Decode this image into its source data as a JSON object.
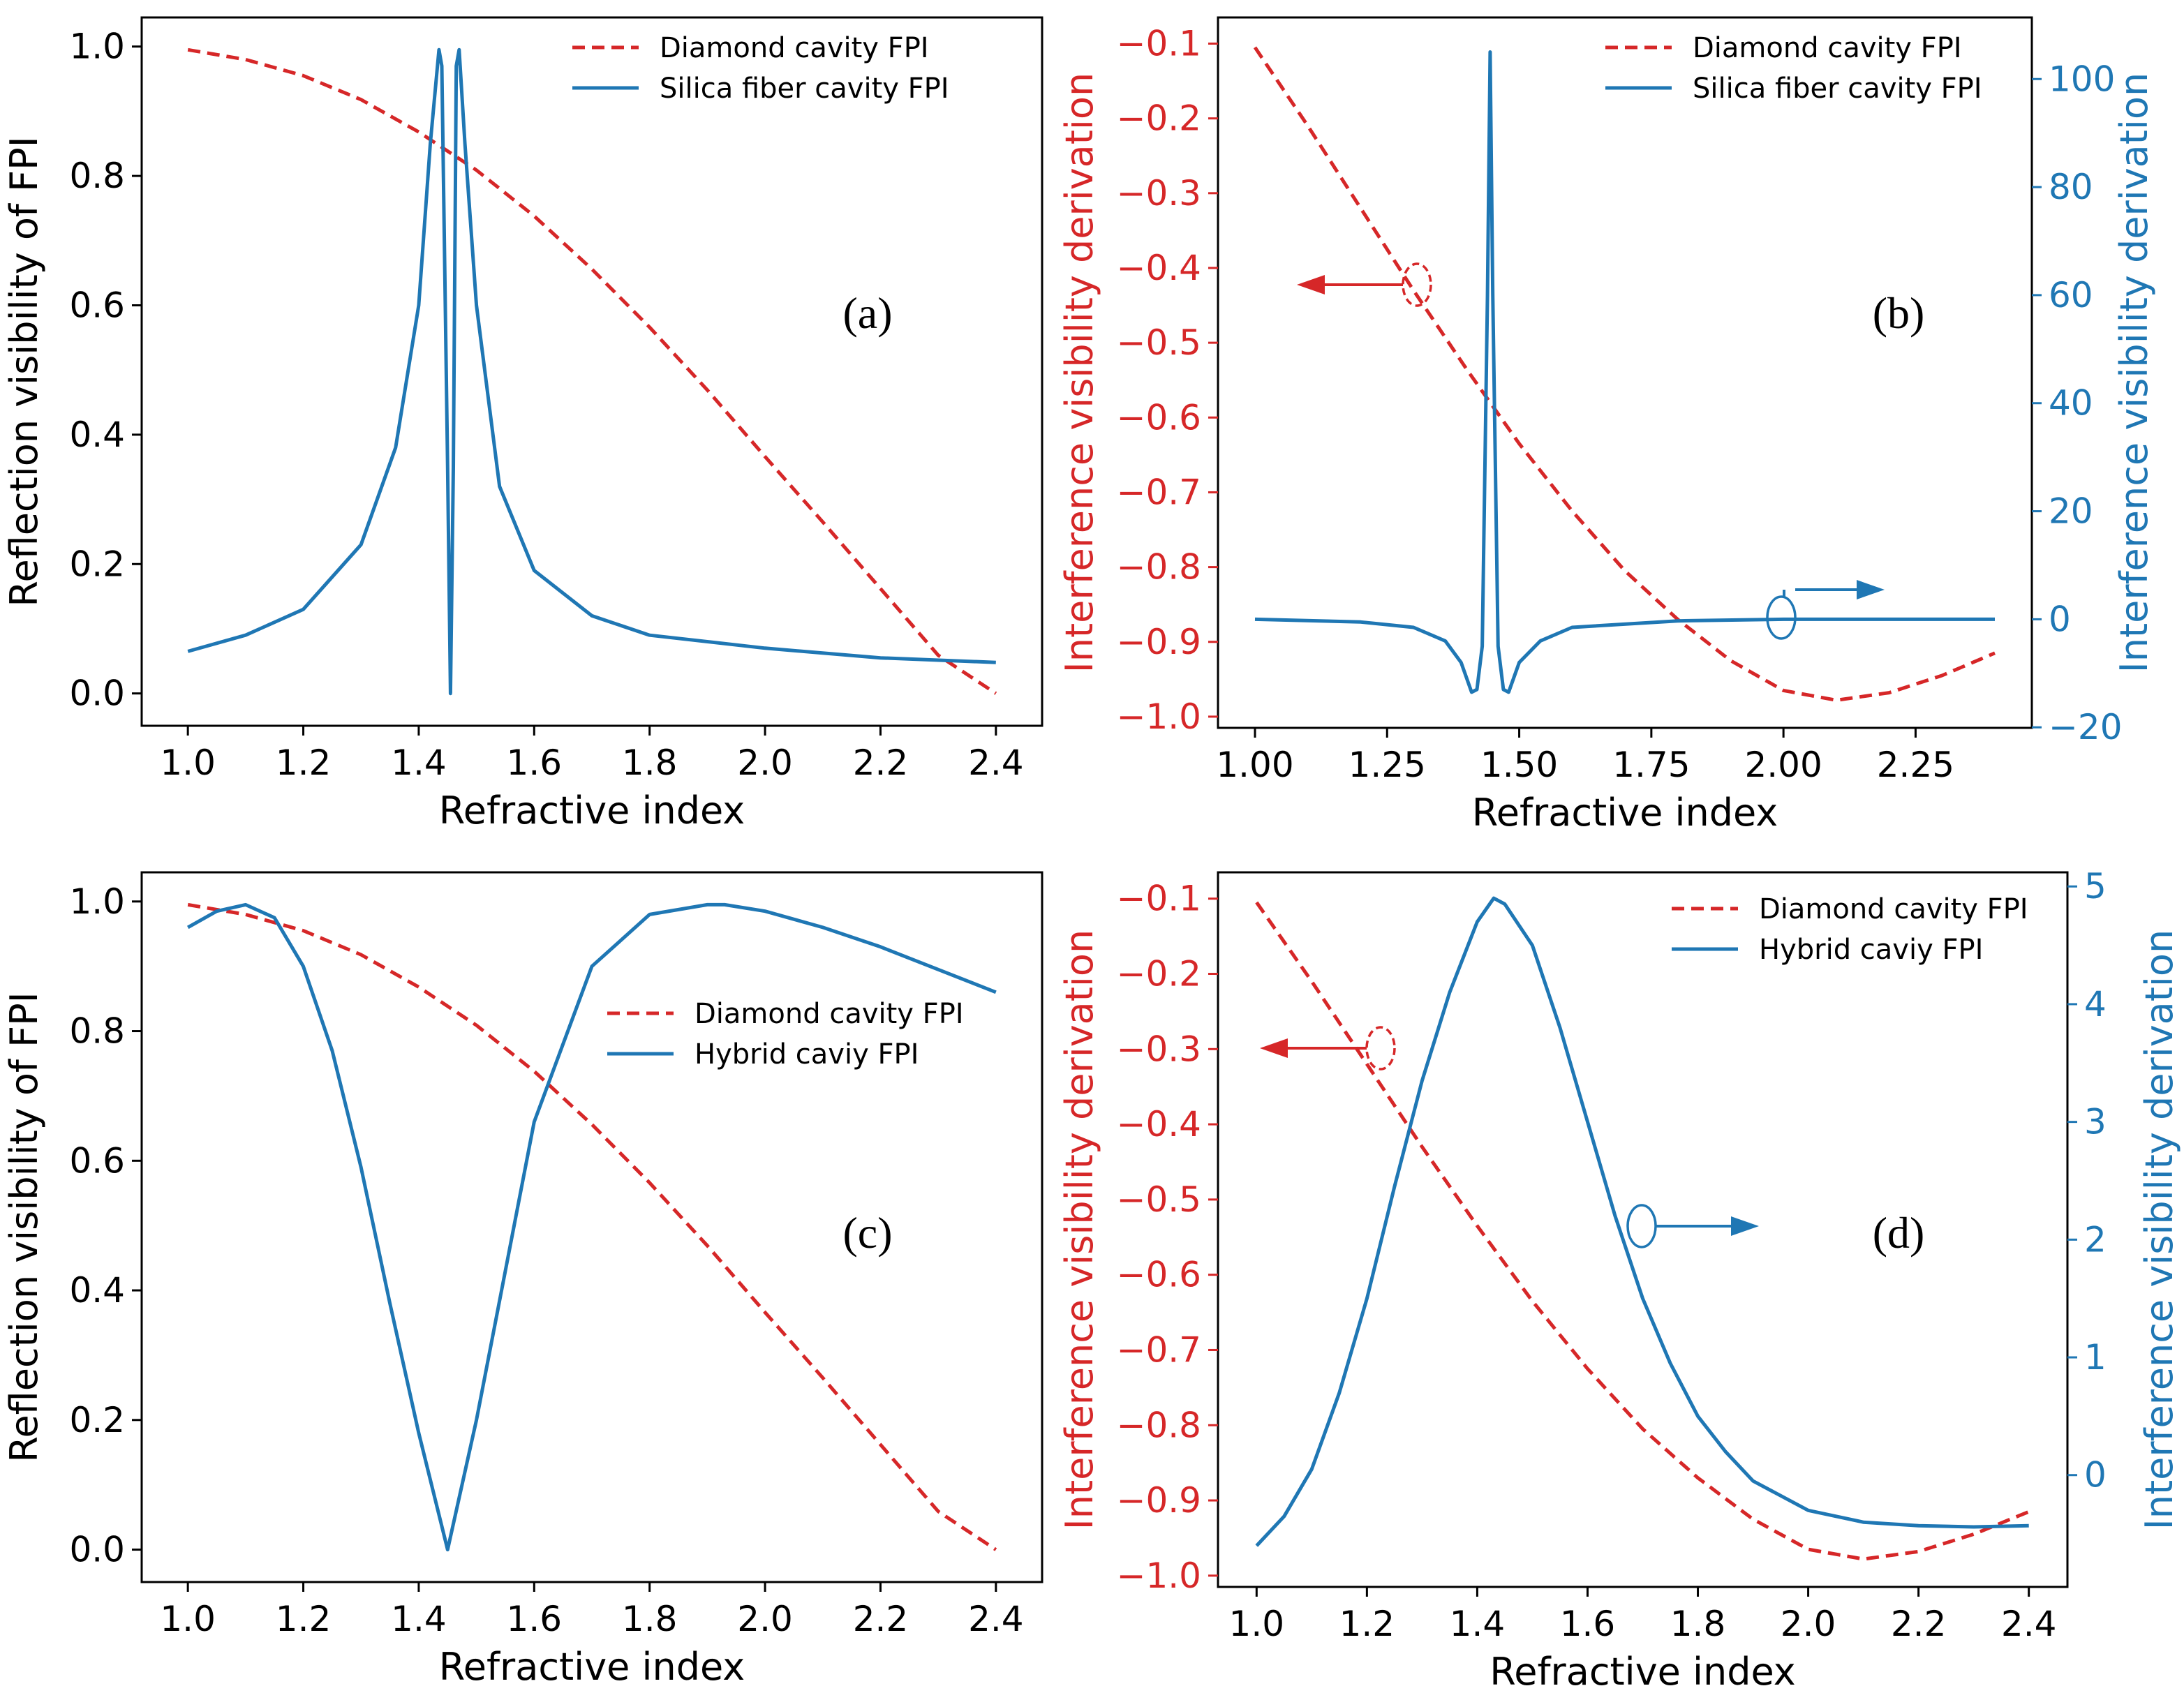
{
  "colors": {
    "red": "#d62728",
    "blue": "#1f77b4",
    "axis": "#000000"
  },
  "chart_data": [
    {
      "id": "a",
      "type": "line",
      "panel_label": "(a)",
      "xlabel": "Refractive index",
      "ylabel": "Reflection visibility of  FPI",
      "xlim": [
        0.92,
        2.48
      ],
      "ylim": [
        -0.05,
        1.045
      ],
      "xticks": [
        1.0,
        1.2,
        1.4,
        1.6,
        1.8,
        2.0,
        2.2,
        2.4
      ],
      "xtick_labels": [
        "1.0",
        "1.2",
        "1.4",
        "1.6",
        "1.8",
        "2.0",
        "2.2",
        "2.4"
      ],
      "yticks": [
        0.0,
        0.2,
        0.4,
        0.6,
        0.8,
        1.0
      ],
      "ytick_labels": [
        "0.0",
        "0.2",
        "0.4",
        "0.6",
        "0.8",
        "1.0"
      ],
      "legend": [
        "Diamond cavity FPI",
        "Silica fiber cavity FPI"
      ],
      "legend_loc": "upper-right",
      "series": [
        {
          "name": "Diamond cavity FPI",
          "style": "dashed",
          "color": "red",
          "x": [
            1.0,
            1.1,
            1.2,
            1.3,
            1.4,
            1.5,
            1.6,
            1.7,
            1.8,
            1.9,
            2.0,
            2.1,
            2.2,
            2.3,
            2.4
          ],
          "y": [
            0.995,
            0.98,
            0.955,
            0.918,
            0.868,
            0.809,
            0.738,
            0.656,
            0.566,
            0.469,
            0.366,
            0.265,
            0.162,
            0.059,
            0.0
          ]
        },
        {
          "name": "Silica fiber cavity FPI",
          "style": "solid",
          "color": "blue",
          "x": [
            1.0,
            1.1,
            1.2,
            1.3,
            1.36,
            1.4,
            1.42,
            1.435,
            1.44,
            1.45,
            1.455,
            1.46,
            1.465,
            1.47,
            1.48,
            1.5,
            1.54,
            1.6,
            1.7,
            1.8,
            2.0,
            2.2,
            2.4
          ],
          "y": [
            0.065,
            0.09,
            0.13,
            0.23,
            0.38,
            0.6,
            0.85,
            0.995,
            0.97,
            0.35,
            0.0,
            0.35,
            0.97,
            0.995,
            0.85,
            0.6,
            0.32,
            0.19,
            0.12,
            0.09,
            0.07,
            0.055,
            0.048
          ]
        }
      ]
    },
    {
      "id": "b",
      "type": "line",
      "panel_label": "(b)",
      "xlabel": "Refractive index",
      "ylabel": "Interference visibility derivation",
      "ylabel_right": "Interference visibility derivation",
      "xlim": [
        0.93,
        2.47
      ],
      "ylim": [
        -1.015,
        -0.065
      ],
      "ylim_right": [
        -20.1,
        111.4
      ],
      "xticks": [
        1.0,
        1.25,
        1.5,
        1.75,
        2.0,
        2.25
      ],
      "xtick_labels": [
        "1.00",
        "1.25",
        "1.50",
        "1.75",
        "2.00",
        "2.25"
      ],
      "yticks": [
        -1.0,
        -0.9,
        -0.8,
        -0.7,
        -0.6,
        -0.5,
        -0.4,
        -0.3,
        -0.2,
        -0.1
      ],
      "ytick_labels": [
        "−1.0",
        "−0.9",
        "−0.8",
        "−0.7",
        "−0.6",
        "−0.5",
        "−0.4",
        "−0.3",
        "−0.2",
        "−0.1"
      ],
      "yticks_right": [
        -20,
        0,
        20,
        40,
        60,
        80,
        100
      ],
      "ytick_labels_right": [
        "−20",
        "0",
        "20",
        "40",
        "60",
        "80",
        "100"
      ],
      "legend": [
        "Diamond cavity FPI",
        "Silica fiber cavity FPI"
      ],
      "legend_loc": "upper-right",
      "series": [
        {
          "name": "Diamond cavity FPI",
          "style": "dashed",
          "color": "red",
          "axis": "left",
          "x": [
            1.0,
            1.1,
            1.2,
            1.3,
            1.4,
            1.5,
            1.6,
            1.7,
            1.8,
            1.9,
            2.0,
            2.1,
            2.2,
            2.3,
            2.4
          ],
          "y": [
            -0.105,
            -0.21,
            -0.32,
            -0.43,
            -0.535,
            -0.635,
            -0.725,
            -0.805,
            -0.87,
            -0.925,
            -0.965,
            -0.978,
            -0.968,
            -0.945,
            -0.915
          ]
        },
        {
          "name": "Silica fiber cavity FPI",
          "style": "solid",
          "color": "blue",
          "axis": "right",
          "x": [
            1.0,
            1.2,
            1.3,
            1.36,
            1.39,
            1.41,
            1.42,
            1.43,
            1.44,
            1.445,
            1.45,
            1.46,
            1.47,
            1.48,
            1.5,
            1.54,
            1.6,
            1.8,
            2.0,
            2.4
          ],
          "y": [
            0.0,
            -0.5,
            -1.5,
            -4.0,
            -8.0,
            -13.5,
            -13.0,
            -5.0,
            60.0,
            105.0,
            60.0,
            -5.0,
            -13.0,
            -13.5,
            -8.0,
            -4.0,
            -1.5,
            -0.3,
            0.0,
            0.0
          ]
        }
      ],
      "annotations": [
        "red ellipse with arrow pointing to left axis",
        "blue ellipse with arrow pointing to right axis"
      ]
    },
    {
      "id": "c",
      "type": "line",
      "panel_label": "(c)",
      "xlabel": "Refractive index",
      "ylabel": "Reflection visibility of FPI",
      "xlim": [
        0.92,
        2.48
      ],
      "ylim": [
        -0.05,
        1.045
      ],
      "xticks": [
        1.0,
        1.2,
        1.4,
        1.6,
        1.8,
        2.0,
        2.2,
        2.4
      ],
      "xtick_labels": [
        "1.0",
        "1.2",
        "1.4",
        "1.6",
        "1.8",
        "2.0",
        "2.2",
        "2.4"
      ],
      "yticks": [
        0.0,
        0.2,
        0.4,
        0.6,
        0.8,
        1.0
      ],
      "ytick_labels": [
        "0.0",
        "0.2",
        "0.4",
        "0.6",
        "0.8",
        "1.0"
      ],
      "legend": [
        "Diamond cavity FPI",
        "Hybrid caviy FPI"
      ],
      "legend_loc": "center-right",
      "series": [
        {
          "name": "Diamond cavity FPI",
          "style": "dashed",
          "color": "red",
          "x": [
            1.0,
            1.1,
            1.2,
            1.3,
            1.4,
            1.5,
            1.6,
            1.7,
            1.8,
            1.9,
            2.0,
            2.1,
            2.2,
            2.3,
            2.4
          ],
          "y": [
            0.995,
            0.98,
            0.955,
            0.918,
            0.868,
            0.809,
            0.738,
            0.656,
            0.566,
            0.469,
            0.366,
            0.265,
            0.162,
            0.059,
            0.0
          ]
        },
        {
          "name": "Hybrid caviy FPI",
          "style": "solid",
          "color": "blue",
          "x": [
            1.0,
            1.05,
            1.1,
            1.15,
            1.2,
            1.25,
            1.3,
            1.35,
            1.4,
            1.45,
            1.5,
            1.55,
            1.6,
            1.7,
            1.8,
            1.9,
            1.93,
            2.0,
            2.1,
            2.2,
            2.3,
            2.4
          ],
          "y": [
            0.96,
            0.985,
            0.995,
            0.975,
            0.9,
            0.77,
            0.59,
            0.38,
            0.18,
            0.0,
            0.2,
            0.43,
            0.66,
            0.9,
            0.98,
            0.995,
            0.995,
            0.985,
            0.96,
            0.93,
            0.895,
            0.86
          ]
        }
      ]
    },
    {
      "id": "d",
      "type": "line",
      "panel_label": "(d)",
      "xlabel": "Refractive index",
      "ylabel": "Interference visibility derivation",
      "ylabel_right": "Interference visibility derivation",
      "xlim": [
        0.93,
        2.47
      ],
      "ylim": [
        -1.015,
        -0.065
      ],
      "ylim_right": [
        -0.95,
        5.12
      ],
      "xticks": [
        1.0,
        1.2,
        1.4,
        1.6,
        1.8,
        2.0,
        2.2,
        2.4
      ],
      "xtick_labels": [
        "1.0",
        "1.2",
        "1.4",
        "1.6",
        "1.8",
        "2.0",
        "2.2",
        "2.4"
      ],
      "yticks": [
        -1.0,
        -0.9,
        -0.8,
        -0.7,
        -0.6,
        -0.5,
        -0.4,
        -0.3,
        -0.2,
        -0.1
      ],
      "ytick_labels": [
        "−1.0",
        "−0.9",
        "−0.8",
        "−0.7",
        "−0.6",
        "−0.5",
        "−0.4",
        "−0.3",
        "−0.2",
        "−0.1"
      ],
      "yticks_right": [
        0,
        1,
        2,
        3,
        4,
        5
      ],
      "ytick_labels_right": [
        "0",
        "1",
        "2",
        "3",
        "4",
        "5"
      ],
      "legend": [
        "Diamond cavity FPI",
        "Hybrid caviy FPI"
      ],
      "legend_loc": "upper-right",
      "series": [
        {
          "name": "Diamond cavity FPI",
          "style": "dashed",
          "color": "red",
          "axis": "left",
          "x": [
            1.0,
            1.1,
            1.2,
            1.3,
            1.4,
            1.5,
            1.6,
            1.7,
            1.8,
            1.9,
            2.0,
            2.1,
            2.2,
            2.3,
            2.4
          ],
          "y": [
            -0.105,
            -0.21,
            -0.32,
            -0.43,
            -0.535,
            -0.635,
            -0.725,
            -0.805,
            -0.87,
            -0.925,
            -0.965,
            -0.978,
            -0.968,
            -0.945,
            -0.915
          ]
        },
        {
          "name": "Hybrid caviy FPI",
          "style": "solid",
          "color": "blue",
          "axis": "right",
          "x": [
            1.0,
            1.05,
            1.1,
            1.15,
            1.2,
            1.25,
            1.3,
            1.35,
            1.4,
            1.43,
            1.45,
            1.5,
            1.55,
            1.6,
            1.65,
            1.7,
            1.75,
            1.8,
            1.85,
            1.9,
            2.0,
            2.1,
            2.2,
            2.3,
            2.4
          ],
          "y": [
            -0.6,
            -0.35,
            0.05,
            0.7,
            1.5,
            2.45,
            3.35,
            4.1,
            4.7,
            4.9,
            4.85,
            4.5,
            3.8,
            3.0,
            2.2,
            1.5,
            0.95,
            0.5,
            0.2,
            -0.05,
            -0.3,
            -0.4,
            -0.43,
            -0.44,
            -0.43
          ]
        }
      ],
      "annotations": [
        "red ellipse with arrow pointing to left axis",
        "blue ellipse with arrow pointing to right axis"
      ]
    }
  ]
}
